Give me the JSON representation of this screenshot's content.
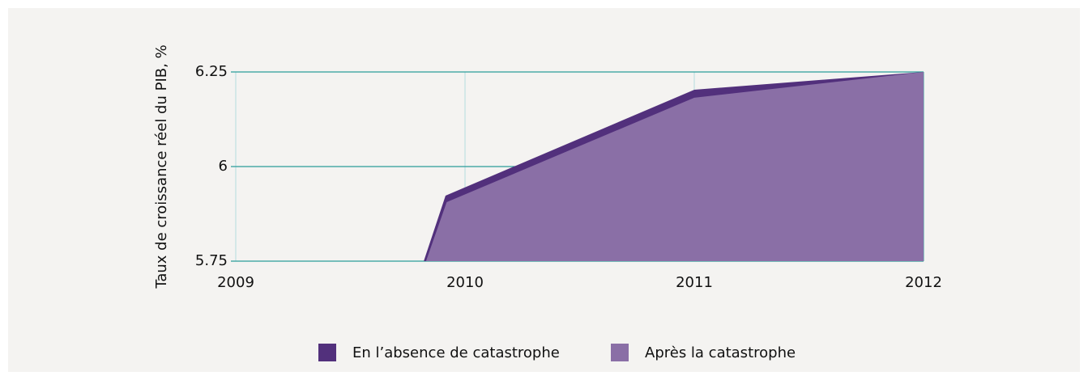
{
  "chart_data": {
    "type": "area",
    "y_label": "Taux de croissance réel du PIB, %",
    "series": [
      {
        "name": "En l’absence de catastrophe",
        "color": "#52307c",
        "x": [
          2009.82,
          2009.915,
          2011,
          2012
        ],
        "values": [
          5.75,
          5.923,
          6.203,
          6.25
        ]
      },
      {
        "name": "Après la catastrophe",
        "color": "#8a6fa6",
        "x": [
          2009.83,
          2009.92,
          2011,
          2012
        ],
        "values": [
          5.75,
          5.906,
          6.182,
          6.25
        ]
      }
    ],
    "xlim": [
      2009,
      2012
    ],
    "xticks": [
      2009,
      2010,
      2011,
      2012
    ],
    "ylim": [
      5.75,
      6.25
    ],
    "yticks": [
      5.75,
      6,
      6.25
    ],
    "grid": true,
    "legend": "bottom"
  }
}
